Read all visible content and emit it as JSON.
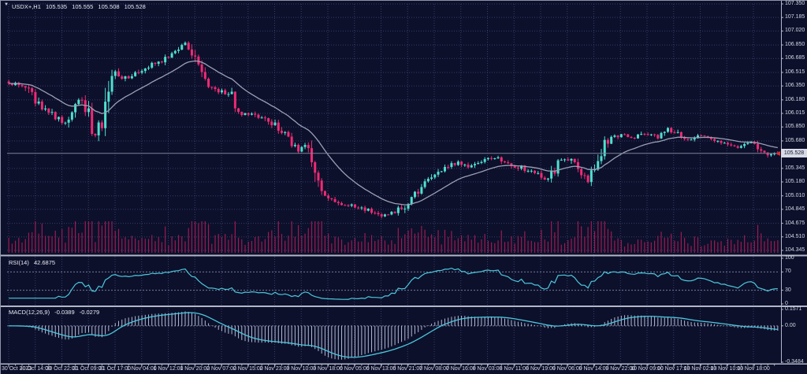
{
  "title": {
    "symbol_timeframe": "USDX+,H1",
    "open": "105.535",
    "high": "105.555",
    "low": "105.508",
    "close": "105.528"
  },
  "price_axis": {
    "tick_labels": [
      "107.350",
      "107.185",
      "107.020",
      "106.850",
      "106.685",
      "106.515",
      "106.350",
      "106.180",
      "106.015",
      "105.850",
      "105.680",
      "105.345",
      "105.180",
      "105.010",
      "104.845",
      "104.675",
      "104.510",
      "104.345"
    ],
    "current_price": "105.528"
  },
  "time_axis": {
    "tick_labels": [
      "30 Oct 2023",
      "30 Oct 14:00",
      "30 Oct 22:00",
      "31 Oct 09:00",
      "31 Oct 17:00",
      "1 Nov 04:00",
      "1 Nov 12:00",
      "1 Nov 20:00",
      "2 Nov 07:00",
      "2 Nov 15:00",
      "2 Nov 23:00",
      "3 Nov 10:00",
      "3 Nov 18:00",
      "6 Nov 05:00",
      "6 Nov 13:00",
      "6 Nov 21:00",
      "7 Nov 08:00",
      "7 Nov 16:00",
      "8 Nov 03:00",
      "8 Nov 11:00",
      "8 Nov 19:00",
      "9 Nov 06:00",
      "9 Nov 14:00",
      "9 Nov 22:00",
      "10 Nov 09:00",
      "10 Nov 17:00",
      "13 Nov 02:00",
      "13 Nov 10:00",
      "13 Nov 18:00"
    ]
  },
  "rsi_pane": {
    "name": "RSI(14)",
    "value": "42.6875",
    "axis_labels": [
      "100",
      "70",
      "30",
      "0"
    ]
  },
  "macd_pane": {
    "name": "MACD(12,26,9)",
    "value_main": "-0.0389",
    "value_signal": "-0.0279",
    "axis_labels": [
      "0.1571",
      "0.00",
      "-0.3484"
    ]
  },
  "colors": {
    "background": "#0c102b",
    "grid": "#363d68",
    "level_line": "#767c9a",
    "bull": "#4fe0d0",
    "bear": "#f02a74",
    "volume": "#9c1a52",
    "ma_line": "#9aa0b4",
    "indicator_line": "#4cc7dc",
    "macd_histogram": "#b4bad4",
    "separator": "#b2b6c6",
    "price_line": "#7e8398",
    "badge_bg": "#d8dbe6",
    "badge_text": "#14172e",
    "badge_pointer": "#e03131",
    "axis_text": "#d4d6e2"
  },
  "chart_data": {
    "type": "candlestick",
    "symbol": "USDX+",
    "timeframe": "H1",
    "bars": 232,
    "last_bar": {
      "open": 105.535,
      "high": 105.555,
      "low": 105.508,
      "close": 105.528
    },
    "y_axis": {
      "min": 104.345,
      "max": 107.35
    },
    "price_path_anchors": [
      [
        0,
        106.4
      ],
      [
        5,
        106.33
      ],
      [
        9,
        106.12
      ],
      [
        13,
        106.0
      ],
      [
        17,
        105.9
      ],
      [
        21,
        106.17
      ],
      [
        23,
        106.08
      ],
      [
        26,
        105.76
      ],
      [
        28,
        105.9
      ],
      [
        31,
        106.52
      ],
      [
        34,
        106.42
      ],
      [
        38,
        106.5
      ],
      [
        42,
        106.58
      ],
      [
        46,
        106.66
      ],
      [
        50,
        106.76
      ],
      [
        53,
        106.86
      ],
      [
        55,
        106.8
      ],
      [
        57,
        106.56
      ],
      [
        60,
        106.36
      ],
      [
        64,
        106.28
      ],
      [
        67,
        106.22
      ],
      [
        69,
        105.99
      ],
      [
        73,
        106.01
      ],
      [
        76,
        105.96
      ],
      [
        80,
        105.86
      ],
      [
        84,
        105.7
      ],
      [
        87,
        105.56
      ],
      [
        90,
        105.62
      ],
      [
        93,
        105.12
      ],
      [
        96,
        104.96
      ],
      [
        100,
        104.9
      ],
      [
        105,
        104.88
      ],
      [
        109,
        104.81
      ],
      [
        113,
        104.77
      ],
      [
        118,
        104.86
      ],
      [
        121,
        105.0
      ],
      [
        126,
        105.18
      ],
      [
        130,
        105.33
      ],
      [
        135,
        105.42
      ],
      [
        139,
        105.37
      ],
      [
        143,
        105.45
      ],
      [
        147,
        105.48
      ],
      [
        151,
        105.4
      ],
      [
        154,
        105.35
      ],
      [
        159,
        105.28
      ],
      [
        162,
        105.22
      ],
      [
        165,
        105.42
      ],
      [
        168,
        105.47
      ],
      [
        171,
        105.32
      ],
      [
        174,
        105.2
      ],
      [
        177,
        105.4
      ],
      [
        180,
        105.7
      ],
      [
        184,
        105.76
      ],
      [
        188,
        105.72
      ],
      [
        191,
        105.78
      ],
      [
        195,
        105.73
      ],
      [
        198,
        105.82
      ],
      [
        201,
        105.76
      ],
      [
        205,
        105.7
      ],
      [
        208,
        105.74
      ],
      [
        212,
        105.7
      ],
      [
        216,
        105.65
      ],
      [
        220,
        105.6
      ],
      [
        223,
        105.65
      ],
      [
        226,
        105.56
      ],
      [
        229,
        105.51
      ],
      [
        231,
        105.53
      ]
    ],
    "overlays": [
      {
        "name": "moving-average",
        "type": "ema",
        "period": 20
      },
      {
        "name": "current-price-line",
        "value": 105.528
      }
    ],
    "indicators": [
      {
        "name": "RSI",
        "period": 14,
        "current": 42.6875,
        "range": [
          0,
          100
        ],
        "levels": [
          70,
          30
        ]
      },
      {
        "name": "MACD",
        "params": [
          12,
          26,
          9
        ],
        "current_main": -0.0389,
        "current_signal": -0.0279,
        "axis_max": 0.1571,
        "axis_min": -0.3484
      }
    ],
    "volume": {
      "present": true,
      "location": "bottom-of-price-pane"
    }
  }
}
